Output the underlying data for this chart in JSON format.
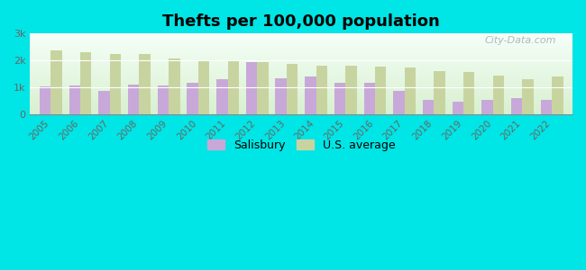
{
  "title": "Thefts per 100,000 population",
  "years": [
    2005,
    2006,
    2007,
    2008,
    2009,
    2010,
    2011,
    2012,
    2013,
    2014,
    2015,
    2016,
    2017,
    2018,
    2019,
    2020,
    2021,
    2022
  ],
  "salisbury": [
    1050,
    1080,
    870,
    1100,
    1080,
    1170,
    1300,
    1950,
    1330,
    1400,
    1190,
    1190,
    870,
    540,
    490,
    540,
    620,
    530
  ],
  "us_average": [
    2380,
    2310,
    2260,
    2230,
    2080,
    2000,
    1980,
    1960,
    1880,
    1820,
    1800,
    1780,
    1750,
    1620,
    1590,
    1430,
    1310,
    1410
  ],
  "salisbury_color": "#c8a8d8",
  "us_average_color": "#c8d4a0",
  "bg_top": "#f5fff8",
  "bg_bottom": "#d8f0d0",
  "outer_background": "#00e5e5",
  "ylim": [
    0,
    3000
  ],
  "yticks": [
    0,
    1000,
    2000,
    3000
  ],
  "ytick_labels": [
    "0",
    "1k",
    "2k",
    "3k"
  ],
  "bar_width": 0.38,
  "title_fontsize": 13,
  "legend_labels": [
    "Salisbury",
    "U.S. average"
  ]
}
